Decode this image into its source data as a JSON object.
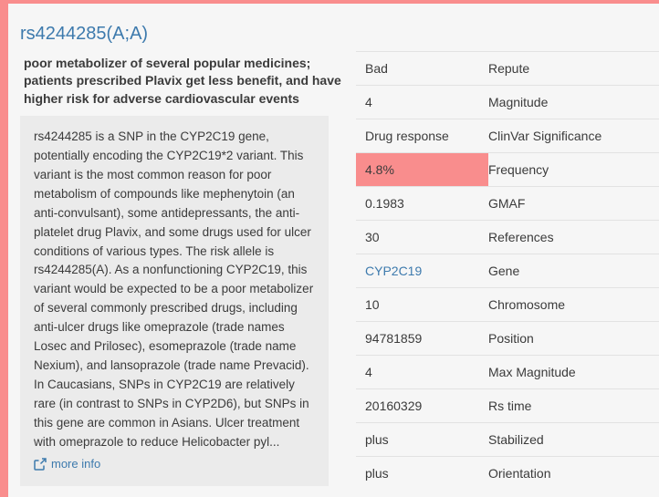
{
  "colors": {
    "accent_pink": "#f98d8d",
    "link_blue": "#3d7aad",
    "page_background": "#f6f6f6",
    "description_background": "#ebebeb",
    "text": "#3b3b3b"
  },
  "header": {
    "title": "rs4244285(A;A)"
  },
  "summary": "poor metabolizer of several popular medicines; patients prescribed Plavix get less benefit, and have higher risk for adverse cardiovascular events",
  "description": {
    "text": "rs4244285 is a SNP in the CYP2C19 gene, potentially encoding the CYP2C19*2 variant. This variant is the most common reason for poor metabolism of compounds like mephenytoin (an anti-convulsant), some antidepressants, the anti-platelet drug Plavix, and some drugs used for ulcer conditions of various types. The risk allele is rs4244285(A). As a nonfunctioning CYP2C19, this variant would be expected to be a poor metabolizer of several commonly prescribed drugs, including anti-ulcer drugs like omeprazole (trade names Losec and Prilosec), esomeprazole (trade name Nexium), and lansoprazole (trade name Prevacid). In Caucasians, SNPs in CYP2C19 are relatively rare (in contrast to SNPs in CYP2D6), but SNPs in this gene are common in Asians. Ulcer treatment with omeprazole to reduce Helicobacter pyl...",
    "more_info_label": "more info"
  },
  "details": {
    "rows": [
      {
        "value": "Bad",
        "label": "Repute"
      },
      {
        "value": "4",
        "label": "Magnitude"
      },
      {
        "value": "Drug response",
        "label": "ClinVar Significance"
      },
      {
        "value": "4.8%",
        "label": "Frequency",
        "highlight": true
      },
      {
        "value": "0.1983",
        "label": "GMAF"
      },
      {
        "value": "30",
        "label": "References"
      },
      {
        "value": "CYP2C19",
        "label": "Gene",
        "link": true
      },
      {
        "value": "10",
        "label": "Chromosome"
      },
      {
        "value": "94781859",
        "label": "Position"
      },
      {
        "value": "4",
        "label": "Max Magnitude"
      },
      {
        "value": "20160329",
        "label": "Rs time"
      },
      {
        "value": "plus",
        "label": "Stabilized"
      },
      {
        "value": "plus",
        "label": "Orientation"
      }
    ]
  }
}
